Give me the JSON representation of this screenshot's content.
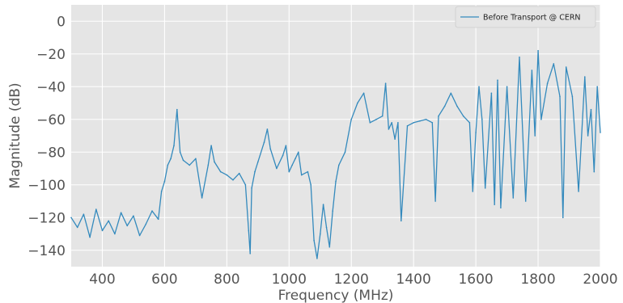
{
  "chart_data": {
    "type": "line",
    "title": "",
    "xlabel": "Frequency (MHz)",
    "ylabel": "Magnitude (dB)",
    "xlim": [
      300,
      2000
    ],
    "ylim": [
      -150,
      10
    ],
    "xticks": [
      400,
      600,
      800,
      1000,
      1200,
      1400,
      1600,
      1800,
      2000
    ],
    "yticks": [
      0,
      -20,
      -40,
      -60,
      -80,
      -100,
      -120,
      -140
    ],
    "grid": true,
    "legend_position": "top-right",
    "colors": {
      "series": "#348abd",
      "plot_bg": "#e5e5e5",
      "grid": "#ffffff"
    },
    "series": [
      {
        "name": "Before Transport @ CERN",
        "x": [
          300,
          320,
          340,
          360,
          380,
          400,
          420,
          440,
          460,
          480,
          500,
          520,
          540,
          560,
          580,
          590,
          600,
          610,
          620,
          630,
          640,
          650,
          660,
          680,
          700,
          720,
          740,
          750,
          760,
          780,
          800,
          820,
          840,
          860,
          870,
          875,
          880,
          890,
          900,
          920,
          930,
          940,
          960,
          980,
          990,
          1000,
          1010,
          1020,
          1030,
          1040,
          1060,
          1070,
          1080,
          1090,
          1100,
          1110,
          1120,
          1130,
          1140,
          1150,
          1160,
          1180,
          1200,
          1220,
          1240,
          1260,
          1280,
          1300,
          1310,
          1320,
          1330,
          1340,
          1350,
          1360,
          1380,
          1400,
          1420,
          1440,
          1460,
          1470,
          1480,
          1500,
          1520,
          1540,
          1560,
          1580,
          1590,
          1600,
          1610,
          1620,
          1630,
          1650,
          1660,
          1670,
          1680,
          1700,
          1720,
          1740,
          1760,
          1780,
          1790,
          1800,
          1810,
          1830,
          1850,
          1870,
          1880,
          1890,
          1910,
          1930,
          1950,
          1960,
          1970,
          1980,
          1990,
          2000
        ],
        "values": [
          -120,
          -126,
          -118,
          -132,
          -115,
          -128,
          -122,
          -130,
          -117,
          -125,
          -119,
          -131,
          -124,
          -116,
          -121,
          -104,
          -98,
          -88,
          -84,
          -76,
          -54,
          -80,
          -85,
          -88,
          -84,
          -108,
          -88,
          -76,
          -86,
          -92,
          -94,
          -97,
          -93,
          -100,
          -128,
          -142,
          -102,
          -92,
          -86,
          -74,
          -66,
          -78,
          -90,
          -82,
          -76,
          -92,
          -88,
          -84,
          -80,
          -94,
          -92,
          -100,
          -134,
          -145,
          -130,
          -112,
          -126,
          -138,
          -116,
          -98,
          -88,
          -80,
          -60,
          -50,
          -44,
          -62,
          -60,
          -58,
          -38,
          -66,
          -62,
          -72,
          -62,
          -122,
          -64,
          -62,
          -61,
          -60,
          -62,
          -110,
          -58,
          -52,
          -44,
          -52,
          -58,
          -62,
          -104,
          -68,
          -40,
          -60,
          -102,
          -44,
          -112,
          -36,
          -114,
          -40,
          -108,
          -22,
          -110,
          -30,
          -70,
          -18,
          -60,
          -38,
          -26,
          -46,
          -120,
          -28,
          -46,
          -104,
          -34,
          -70,
          -54,
          -92,
          -40,
          -68
        ]
      }
    ]
  }
}
